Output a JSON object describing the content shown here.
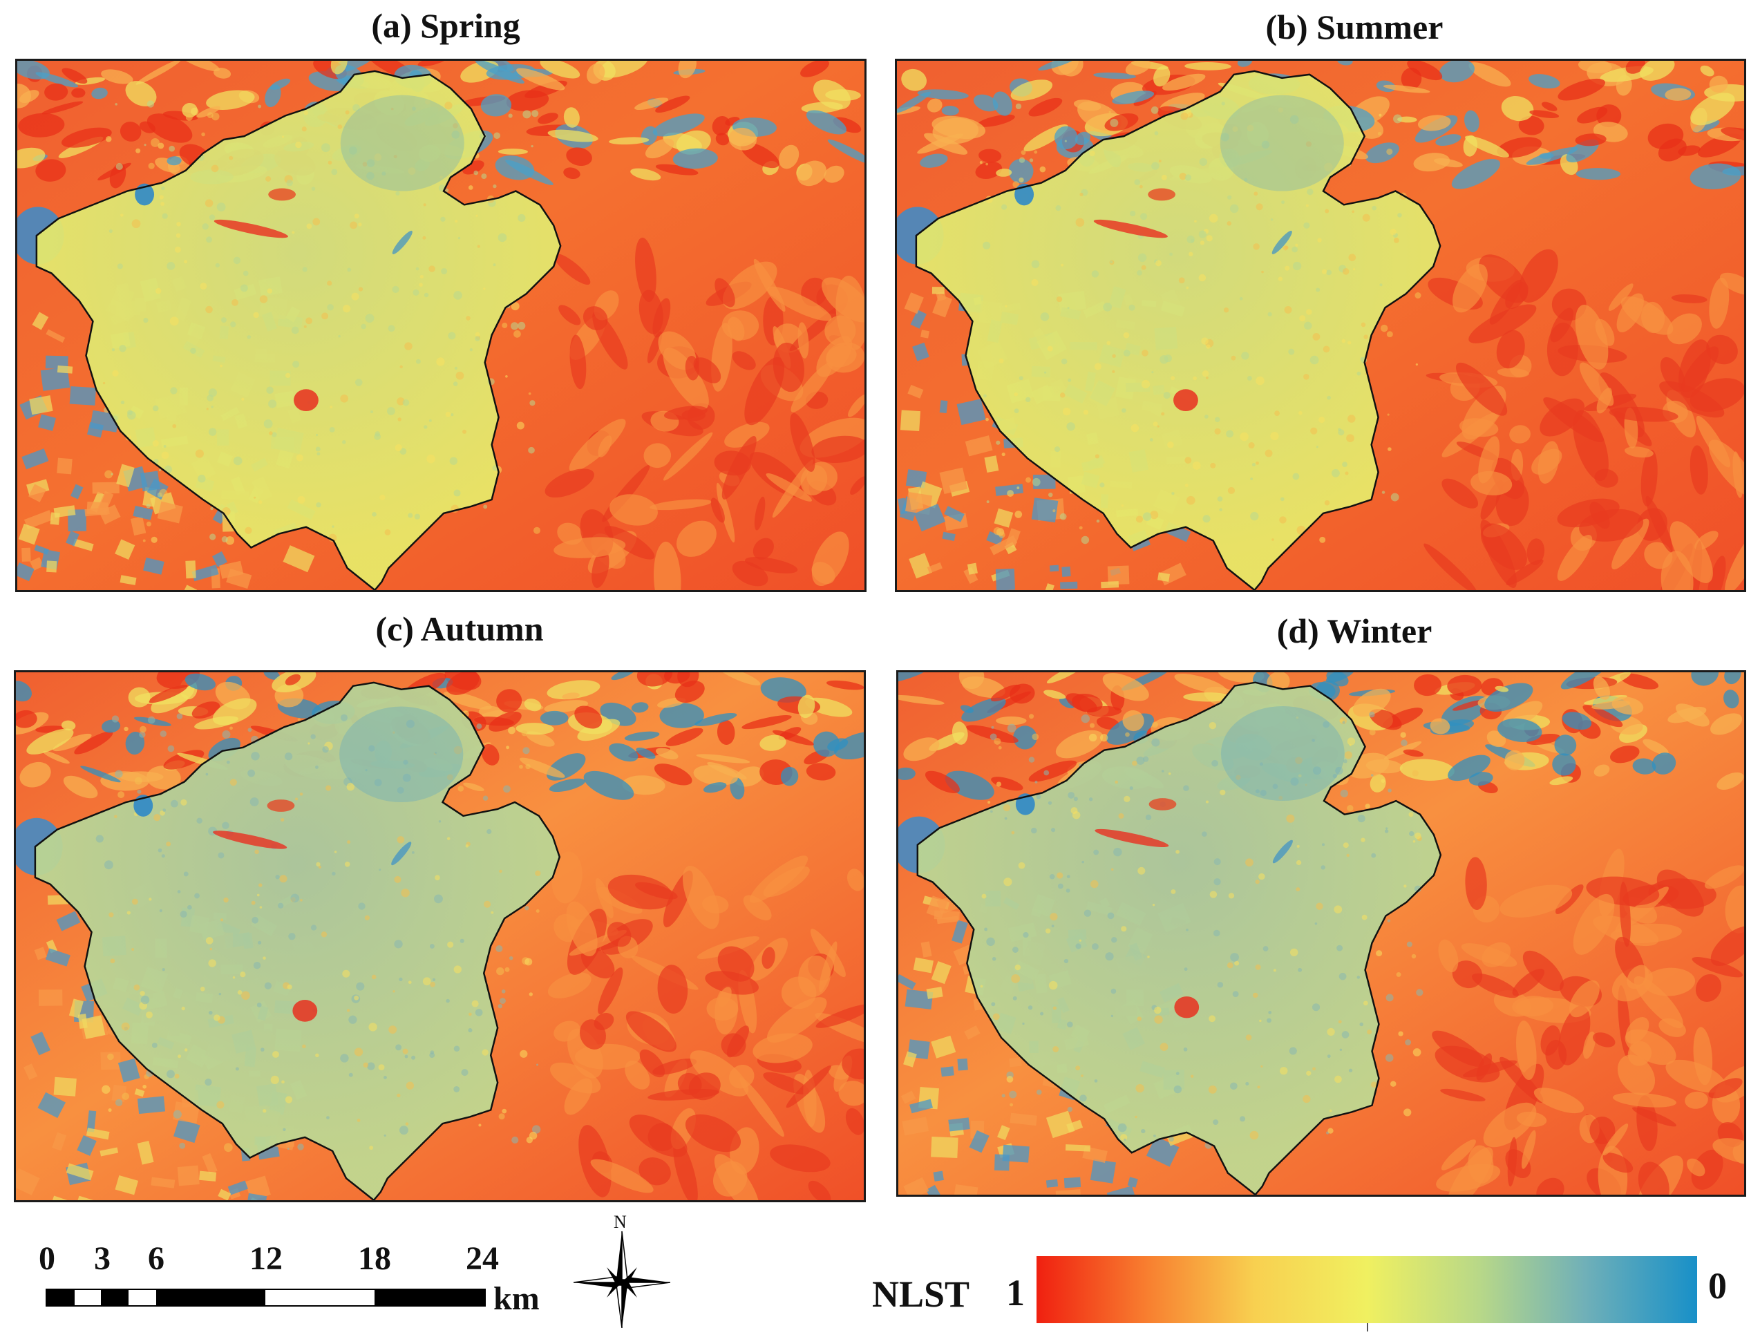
{
  "panels": [
    {
      "id": "spring",
      "title": "(a) Spring",
      "tone": 0.0
    },
    {
      "id": "summer",
      "title": "(b) Summer",
      "tone": 0.1
    },
    {
      "id": "autumn",
      "title": "(c) Autumn",
      "tone": 0.35
    },
    {
      "id": "winter",
      "title": "(d) Winter",
      "tone": 0.45
    }
  ],
  "scale_bar": {
    "ticks": [
      "0",
      "3",
      "6",
      "12",
      "18",
      "24"
    ],
    "unit": "km"
  },
  "north_arrow": {
    "label": "N"
  },
  "legend": {
    "title": "NLST",
    "max_label": "1",
    "min_label": "0",
    "colors": [
      "#f02010",
      "#f88030",
      "#f8d050",
      "#f0f060",
      "#b8d888",
      "#70b0b8",
      "#1890c8"
    ]
  }
}
